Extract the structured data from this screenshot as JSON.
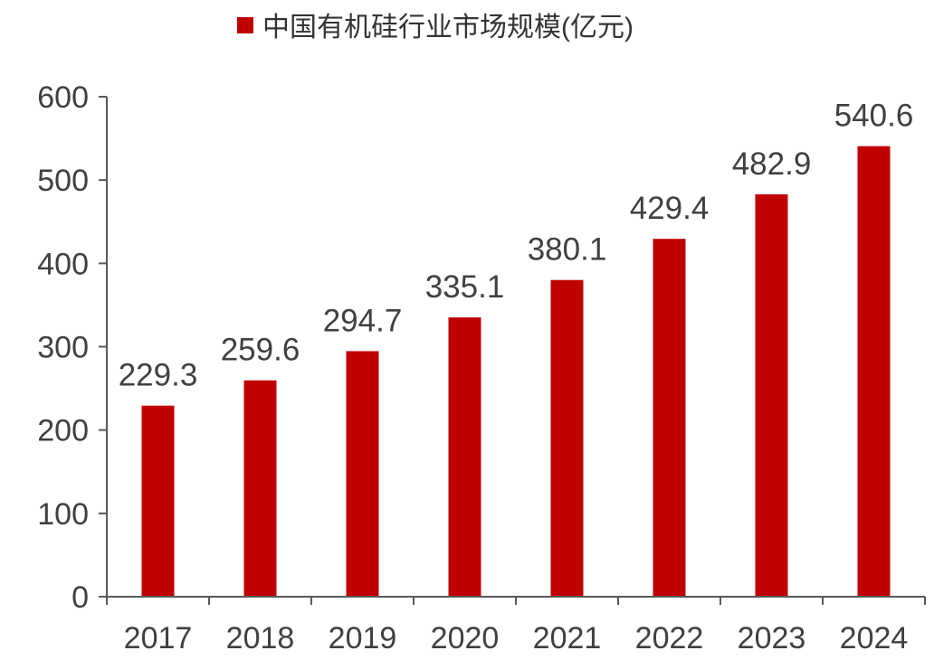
{
  "chart_data": {
    "type": "bar",
    "categories": [
      "2017",
      "2018",
      "2019",
      "2020",
      "2021",
      "2022",
      "2023",
      "2024"
    ],
    "series": [
      {
        "name": "中国有机硅行业市场规模(亿元)",
        "values": [
          229.3,
          259.6,
          294.7,
          335.1,
          380.1,
          429.4,
          482.9,
          540.6
        ],
        "color": "#C00000"
      }
    ],
    "data_labels": [
      "229.3",
      "259.6",
      "294.7",
      "335.1",
      "380.1",
      "429.4",
      "482.9",
      "540.6"
    ],
    "yticks": [
      "0",
      "100",
      "200",
      "300",
      "400",
      "500",
      "600"
    ],
    "ylim": [
      0,
      600
    ],
    "grid": false,
    "legend_position": "top-center"
  }
}
